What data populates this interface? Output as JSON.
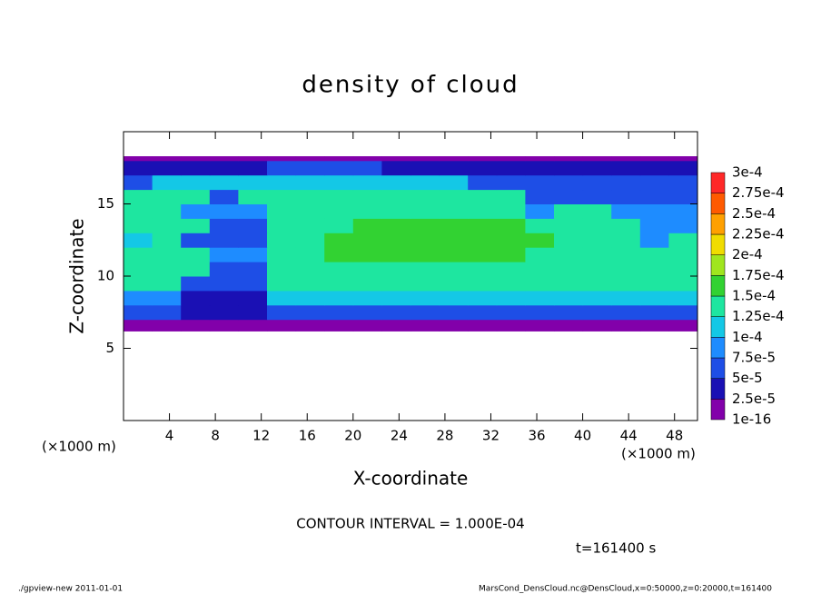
{
  "chart_data": {
    "type": "heatmap",
    "title": "density of cloud",
    "x_label": "X-coordinate",
    "y_label": "Z-coordinate",
    "x_unit": "(×1000 m)",
    "y_unit": "(×1000 m)",
    "note": "CONTOUR INTERVAL = 1.000E-04",
    "time_label": "t=161400 s",
    "footer_left": "./gpview-new  2011-01-01",
    "footer_right": "MarsCond_DensCloud.nc@DensCloud,x=0:50000,z=0:20000,t=161400",
    "xlim": [
      0,
      50
    ],
    "ylim": [
      0,
      20
    ],
    "xticks": [
      4,
      8,
      12,
      16,
      20,
      24,
      28,
      32,
      36,
      40,
      44,
      48
    ],
    "yticks": [
      5,
      10,
      15
    ],
    "x_edges": [
      0,
      2.5,
      5,
      7.5,
      10,
      12.5,
      15,
      17.5,
      20,
      22.5,
      25,
      27.5,
      30,
      32.5,
      35,
      37.5,
      40,
      42.5,
      45,
      47.5,
      50
    ],
    "y_edges": [
      6.2,
      7,
      8,
      9,
      10,
      11,
      12,
      13,
      14,
      15,
      16,
      17,
      18,
      18.3
    ],
    "values": [
      [
        1e-05,
        1e-05,
        1e-05,
        1e-05,
        1e-05,
        1e-05,
        1e-05,
        1e-05,
        1e-05,
        1e-05,
        1e-05,
        1e-05,
        1e-05,
        1e-05,
        1e-05,
        1e-05,
        1e-05,
        1e-05,
        1e-05,
        1e-05
      ],
      [
        6e-05,
        6e-05,
        3e-05,
        3e-05,
        3e-05,
        6e-05,
        6e-05,
        6e-05,
        6e-05,
        6e-05,
        6e-05,
        6e-05,
        6e-05,
        6e-05,
        6e-05,
        6e-05,
        6e-05,
        6e-05,
        6e-05,
        6e-05
      ],
      [
        9e-05,
        9e-05,
        4e-05,
        4e-05,
        4e-05,
        0.00011,
        0.00011,
        0.00011,
        0.00011,
        0.00011,
        0.00011,
        0.00011,
        0.00011,
        0.00011,
        0.00011,
        0.00011,
        0.00011,
        0.00011,
        0.00011,
        0.00011
      ],
      [
        0.00013,
        0.00013,
        6e-05,
        6e-05,
        6e-05,
        0.00013,
        0.00013,
        0.00013,
        0.00013,
        0.00013,
        0.00013,
        0.00013,
        0.00013,
        0.00013,
        0.00013,
        0.00013,
        0.00013,
        0.00013,
        0.00013,
        0.00013
      ],
      [
        0.00013,
        0.00013,
        0.00013,
        7e-05,
        7e-05,
        0.00013,
        0.00013,
        0.00013,
        0.00014,
        0.00014,
        0.00014,
        0.00014,
        0.00014,
        0.00013,
        0.00013,
        0.00013,
        0.00013,
        0.00013,
        0.00013,
        0.00013
      ],
      [
        0.00013,
        0.00013,
        0.00013,
        8e-05,
        8e-05,
        0.00013,
        0.00013,
        0.000155,
        0.000155,
        0.000155,
        0.000155,
        0.000155,
        0.000155,
        0.000155,
        0.00013,
        0.00013,
        0.00013,
        0.00013,
        0.00013,
        0.00013
      ],
      [
        0.00012,
        0.000135,
        6e-05,
        6e-05,
        6e-05,
        0.00013,
        0.00013,
        0.00016,
        0.00016,
        0.00016,
        0.00016,
        0.00016,
        0.00016,
        0.00016,
        0.00016,
        0.00013,
        0.00013,
        0.00013,
        8e-05,
        0.00013
      ],
      [
        0.00013,
        0.00013,
        0.00013,
        5e-05,
        5e-05,
        0.00013,
        0.00013,
        0.00013,
        0.000155,
        0.000155,
        0.000155,
        0.000155,
        0.000155,
        0.000155,
        0.00013,
        0.00013,
        0.00013,
        0.00013,
        9e-05,
        9e-05
      ],
      [
        0.00013,
        0.00013,
        8e-05,
        8e-05,
        8e-05,
        0.000135,
        0.000135,
        0.000135,
        0.000145,
        0.000145,
        0.000145,
        0.000145,
        0.000145,
        0.000145,
        9e-05,
        0.00013,
        0.00013,
        8e-05,
        8e-05,
        8e-05
      ],
      [
        0.00013,
        0.000135,
        0.000135,
        6e-05,
        0.000135,
        0.000135,
        0.000135,
        0.000135,
        0.000135,
        0.000135,
        0.000135,
        0.000135,
        0.000135,
        0.000135,
        7e-05,
        7e-05,
        7e-05,
        7e-05,
        7e-05,
        7e-05
      ],
      [
        6e-05,
        0.00011,
        0.00011,
        0.00011,
        0.00011,
        0.00011,
        0.00012,
        0.00012,
        0.00011,
        0.00011,
        0.00011,
        0.00011,
        5e-05,
        5e-05,
        5e-05,
        5e-05,
        5e-05,
        5e-05,
        5e-05,
        5e-05
      ],
      [
        4e-05,
        4e-05,
        4e-05,
        4e-05,
        4e-05,
        7e-05,
        7e-05,
        7e-05,
        7e-05,
        4e-05,
        4e-05,
        4e-05,
        4e-05,
        4e-05,
        4e-05,
        4e-05,
        4e-05,
        4e-05,
        4e-05,
        4e-05
      ],
      [
        1e-05,
        1e-05,
        1e-05,
        1e-05,
        1e-05,
        1e-05,
        1e-05,
        1e-05,
        1e-05,
        1e-05,
        1e-05,
        1e-05,
        1e-05,
        1e-05,
        1e-05,
        1e-05,
        1e-05,
        1e-05,
        1e-05,
        1e-05
      ]
    ],
    "levels": [
      {
        "value": 1e-16,
        "label": "1e-16"
      },
      {
        "value": 2.5e-05,
        "label": "2.5e-5"
      },
      {
        "value": 5e-05,
        "label": "5e-5"
      },
      {
        "value": 7.5e-05,
        "label": "7.5e-5"
      },
      {
        "value": 0.0001,
        "label": "1e-4"
      },
      {
        "value": 0.000125,
        "label": "1.25e-4"
      },
      {
        "value": 0.00015,
        "label": "1.5e-4"
      },
      {
        "value": 0.000175,
        "label": "1.75e-4"
      },
      {
        "value": 0.0002,
        "label": "2e-4"
      },
      {
        "value": 0.000225,
        "label": "2.25e-4"
      },
      {
        "value": 0.00025,
        "label": "2.5e-4"
      },
      {
        "value": 0.000275,
        "label": "2.75e-4"
      },
      {
        "value": 0.0003,
        "label": "3e-4"
      }
    ],
    "colors": [
      "#8200aa",
      "#1a10b4",
      "#1e4ee6",
      "#1e8cff",
      "#14c8e6",
      "#1ee6a0",
      "#32d232",
      "#a0e61e",
      "#f0dc00",
      "#ffa000",
      "#ff5a00",
      "#ff2828",
      "#ff8c8c"
    ]
  }
}
